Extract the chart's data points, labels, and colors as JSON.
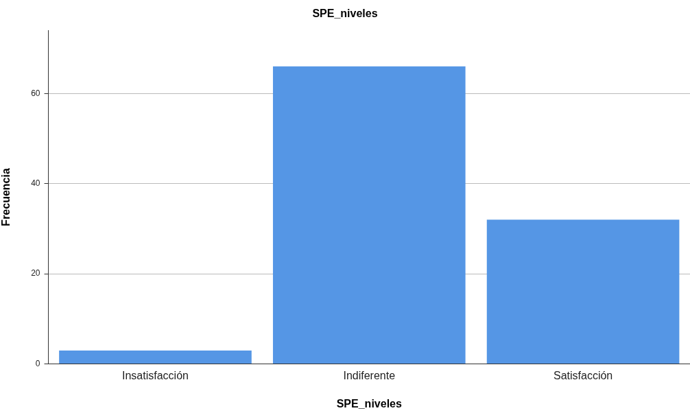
{
  "chart_data": {
    "type": "bar",
    "title": "SPE_niveles",
    "xlabel": "SPE_niveles",
    "ylabel": "Frecuencia",
    "categories": [
      "Insatisfacción",
      "Indiferente",
      "Satisfacción"
    ],
    "values": [
      3,
      66,
      32
    ],
    "color": "#5596e5",
    "ylim": [
      0,
      74
    ],
    "yticks": [
      0,
      20,
      40,
      60
    ],
    "grid": "y"
  }
}
